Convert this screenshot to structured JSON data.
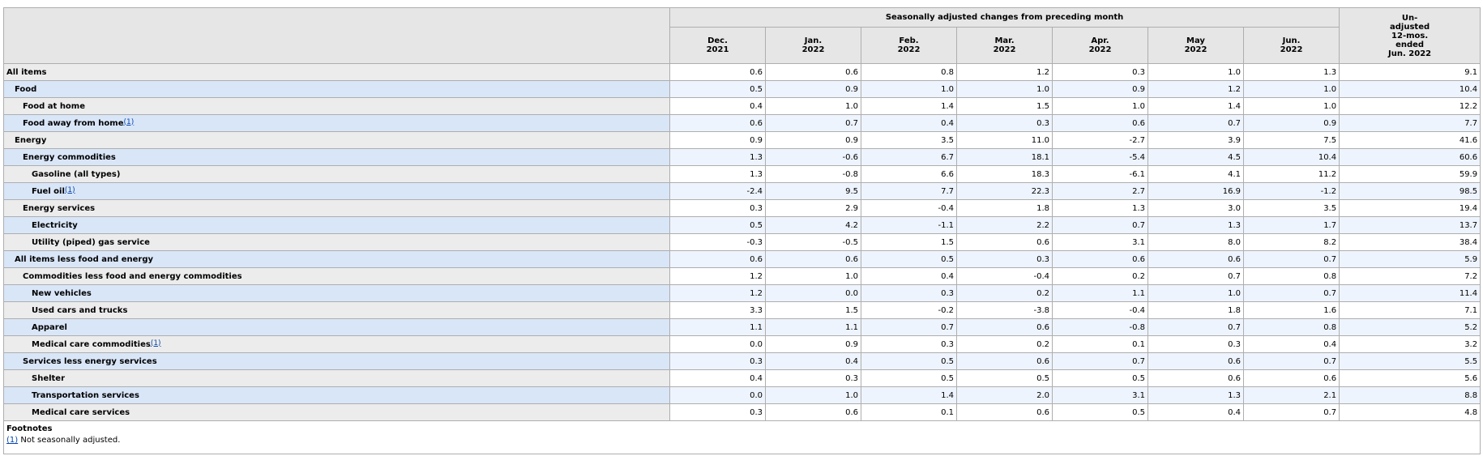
{
  "header": {
    "group_label": "Seasonally adjusted changes from preceding month",
    "months": [
      {
        "line1": "Dec.",
        "line2": "2021"
      },
      {
        "line1": "Jan.",
        "line2": "2022"
      },
      {
        "line1": "Feb.",
        "line2": "2022"
      },
      {
        "line1": "Mar.",
        "line2": "2022"
      },
      {
        "line1": "Apr.",
        "line2": "2022"
      },
      {
        "line1": "May",
        "line2": "2022"
      },
      {
        "line1": "Jun.",
        "line2": "2022"
      }
    ],
    "unadjusted": [
      "Un-",
      "adjusted",
      "12-mos.",
      "ended",
      "Jun. 2022"
    ]
  },
  "rows": [
    {
      "label": "All items",
      "indent": 0,
      "footnote": "",
      "values": [
        "0.6",
        "0.6",
        "0.8",
        "1.2",
        "0.3",
        "1.0",
        "1.3",
        "9.1"
      ]
    },
    {
      "label": "Food",
      "indent": 1,
      "footnote": "",
      "values": [
        "0.5",
        "0.9",
        "1.0",
        "1.0",
        "0.9",
        "1.2",
        "1.0",
        "10.4"
      ]
    },
    {
      "label": "Food at home",
      "indent": 2,
      "footnote": "",
      "values": [
        "0.4",
        "1.0",
        "1.4",
        "1.5",
        "1.0",
        "1.4",
        "1.0",
        "12.2"
      ]
    },
    {
      "label": "Food away from home",
      "indent": 2,
      "footnote": "(1)",
      "values": [
        "0.6",
        "0.7",
        "0.4",
        "0.3",
        "0.6",
        "0.7",
        "0.9",
        "7.7"
      ]
    },
    {
      "label": "Energy",
      "indent": 1,
      "footnote": "",
      "values": [
        "0.9",
        "0.9",
        "3.5",
        "11.0",
        "-2.7",
        "3.9",
        "7.5",
        "41.6"
      ]
    },
    {
      "label": "Energy commodities",
      "indent": 2,
      "footnote": "",
      "values": [
        "1.3",
        "-0.6",
        "6.7",
        "18.1",
        "-5.4",
        "4.5",
        "10.4",
        "60.6"
      ]
    },
    {
      "label": "Gasoline (all types)",
      "indent": 3,
      "footnote": "",
      "values": [
        "1.3",
        "-0.8",
        "6.6",
        "18.3",
        "-6.1",
        "4.1",
        "11.2",
        "59.9"
      ]
    },
    {
      "label": "Fuel oil",
      "indent": 3,
      "footnote": "(1)",
      "values": [
        "-2.4",
        "9.5",
        "7.7",
        "22.3",
        "2.7",
        "16.9",
        "-1.2",
        "98.5"
      ]
    },
    {
      "label": "Energy services",
      "indent": 2,
      "footnote": "",
      "values": [
        "0.3",
        "2.9",
        "-0.4",
        "1.8",
        "1.3",
        "3.0",
        "3.5",
        "19.4"
      ]
    },
    {
      "label": "Electricity",
      "indent": 3,
      "footnote": "",
      "values": [
        "0.5",
        "4.2",
        "-1.1",
        "2.2",
        "0.7",
        "1.3",
        "1.7",
        "13.7"
      ]
    },
    {
      "label": "Utility (piped) gas service",
      "indent": 3,
      "footnote": "",
      "values": [
        "-0.3",
        "-0.5",
        "1.5",
        "0.6",
        "3.1",
        "8.0",
        "8.2",
        "38.4"
      ]
    },
    {
      "label": "All items less food and energy",
      "indent": 1,
      "footnote": "",
      "values": [
        "0.6",
        "0.6",
        "0.5",
        "0.3",
        "0.6",
        "0.6",
        "0.7",
        "5.9"
      ]
    },
    {
      "label": "Commodities less food and energy commodities",
      "indent": 2,
      "footnote": "",
      "values": [
        "1.2",
        "1.0",
        "0.4",
        "-0.4",
        "0.2",
        "0.7",
        "0.8",
        "7.2"
      ]
    },
    {
      "label": "New vehicles",
      "indent": 3,
      "footnote": "",
      "values": [
        "1.2",
        "0.0",
        "0.3",
        "0.2",
        "1.1",
        "1.0",
        "0.7",
        "11.4"
      ]
    },
    {
      "label": "Used cars and trucks",
      "indent": 3,
      "footnote": "",
      "values": [
        "3.3",
        "1.5",
        "-0.2",
        "-3.8",
        "-0.4",
        "1.8",
        "1.6",
        "7.1"
      ]
    },
    {
      "label": "Apparel",
      "indent": 3,
      "footnote": "",
      "values": [
        "1.1",
        "1.1",
        "0.7",
        "0.6",
        "-0.8",
        "0.7",
        "0.8",
        "5.2"
      ]
    },
    {
      "label": "Medical care commodities",
      "indent": 3,
      "footnote": "(1)",
      "values": [
        "0.0",
        "0.9",
        "0.3",
        "0.2",
        "0.1",
        "0.3",
        "0.4",
        "3.2"
      ]
    },
    {
      "label": "Services less energy services",
      "indent": 2,
      "footnote": "",
      "values": [
        "0.3",
        "0.4",
        "0.5",
        "0.6",
        "0.7",
        "0.6",
        "0.7",
        "5.5"
      ]
    },
    {
      "label": "Shelter",
      "indent": 3,
      "footnote": "",
      "values": [
        "0.4",
        "0.3",
        "0.5",
        "0.5",
        "0.5",
        "0.6",
        "0.6",
        "5.6"
      ]
    },
    {
      "label": "Transportation services",
      "indent": 3,
      "footnote": "",
      "values": [
        "0.0",
        "1.0",
        "1.4",
        "2.0",
        "3.1",
        "1.3",
        "2.1",
        "8.8"
      ]
    },
    {
      "label": "Medical care services",
      "indent": 3,
      "footnote": "",
      "values": [
        "0.3",
        "0.6",
        "0.1",
        "0.6",
        "0.5",
        "0.4",
        "0.7",
        "4.8"
      ]
    }
  ],
  "footnotes": {
    "title": "Footnotes",
    "items": [
      {
        "marker": "(1)",
        "text": " Not seasonally adjusted."
      }
    ]
  }
}
